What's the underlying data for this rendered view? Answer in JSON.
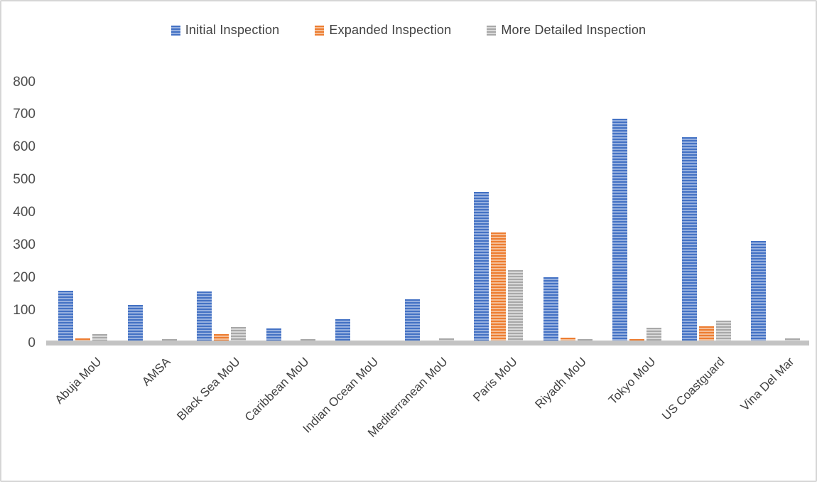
{
  "chart_data": {
    "type": "bar",
    "title": "",
    "categories": [
      "Abuja MoU",
      "AMSA",
      "Black Sea MoU",
      "Caribbean MoU",
      "Indian Ocean MoU",
      "Mediterranean MoU",
      "Paris MoU",
      "Riyadh MoU",
      "Tokyo MoU",
      "US Coastguard",
      "Vina Del Mar"
    ],
    "series": [
      {
        "name": "Initial Inspection",
        "color_dark": "#4472C4",
        "color_light": "#95AFDF",
        "values": [
          160,
          116,
          157,
          44,
          74,
          134,
          463,
          202,
          688,
          632,
          313
        ]
      },
      {
        "name": "Expanded Inspection",
        "color_dark": "#ED7D31",
        "color_light": "#F5BD95",
        "values": [
          15,
          0,
          28,
          0,
          0,
          0,
          339,
          17,
          12,
          51,
          0
        ]
      },
      {
        "name": "More Detailed Inspection",
        "color_dark": "#A8A8A8",
        "color_light": "#D8D8D8",
        "values": [
          28,
          8,
          48,
          7,
          0,
          15,
          224,
          12,
          47,
          69,
          15
        ]
      }
    ],
    "xlabel": "",
    "ylabel": "",
    "ylim": [
      0,
      800
    ],
    "ytick_step": 100,
    "ytick_labels": [
      "0",
      "100",
      "200",
      "300",
      "400",
      "500",
      "600",
      "700",
      "800"
    ],
    "grid": false,
    "legend_position": "top-center",
    "bar_fill_pattern": "horizontal-stripes",
    "axis_line_color": "#C3C3C3",
    "text_color": "#404040"
  }
}
